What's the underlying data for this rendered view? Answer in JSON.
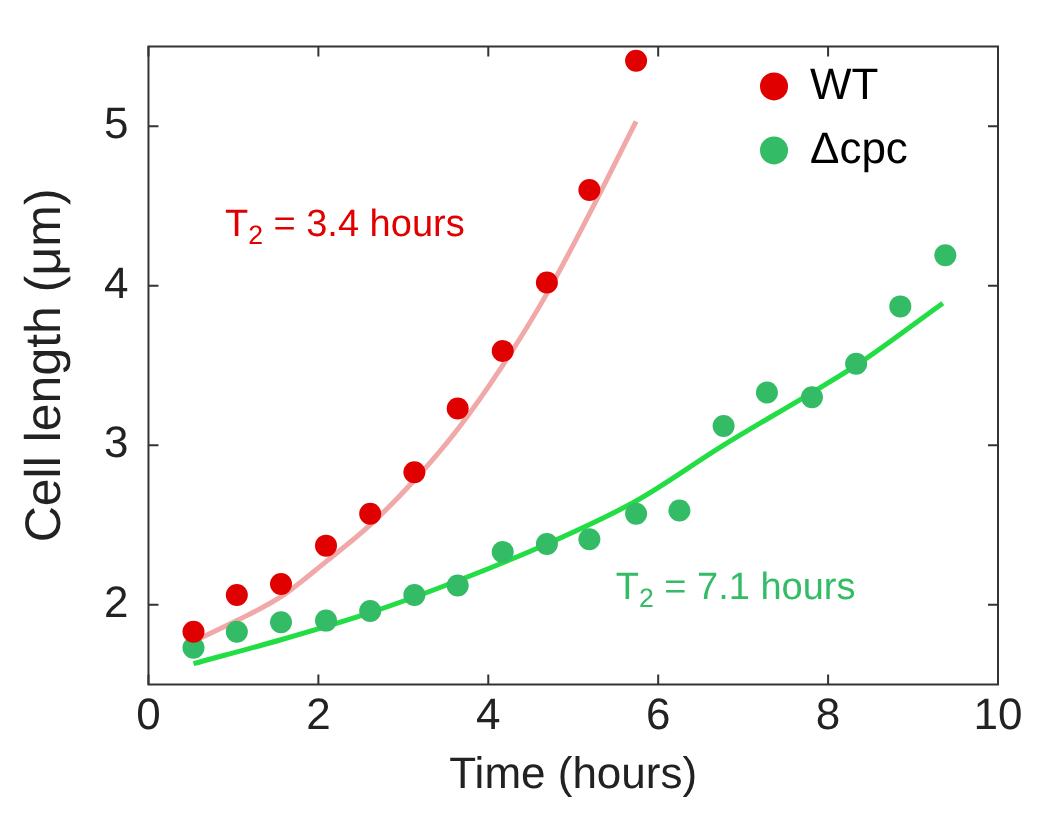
{
  "chart_data": {
    "type": "scatter",
    "xlabel": "Time (hours)",
    "ylabel": "Cell length (μm)",
    "xlim": [
      0,
      10
    ],
    "xticks": [
      0,
      2,
      4,
      6,
      8,
      10
    ],
    "ylim": [
      1.5,
      5.5
    ],
    "yticks": [
      2,
      3,
      4,
      5
    ],
    "grid": false,
    "legend": "top right",
    "series": [
      {
        "name": "WT",
        "color": "#e00000",
        "marker": "circle",
        "x": [
          0.53,
          1.04,
          1.56,
          2.09,
          2.61,
          3.13,
          3.64,
          4.17,
          4.69,
          5.19,
          5.74
        ],
        "values": [
          1.83,
          2.06,
          2.13,
          2.37,
          2.57,
          2.83,
          3.23,
          3.59,
          4.02,
          4.6,
          5.41
        ]
      },
      {
        "name": "Δcpc",
        "color": "#33bb66",
        "marker": "circle",
        "x": [
          0.53,
          1.04,
          1.56,
          2.09,
          2.61,
          3.13,
          3.64,
          4.17,
          4.69,
          5.19,
          5.74,
          6.25,
          6.77,
          7.28,
          7.81,
          8.33,
          8.85,
          9.38
        ],
        "values": [
          1.73,
          1.83,
          1.89,
          1.9,
          1.96,
          2.06,
          2.12,
          2.33,
          2.38,
          2.41,
          2.57,
          2.59,
          3.12,
          3.33,
          3.3,
          3.51,
          3.87,
          4.19
        ]
      },
      {
        "type": "line",
        "color": "#f0a8a8",
        "marker": "none",
        "x": [
          0.53,
          1.04,
          1.56,
          2.09,
          2.61,
          3.13,
          3.64,
          4.17,
          4.69,
          5.19,
          5.74
        ],
        "values": [
          1.77,
          1.9,
          2.05,
          2.27,
          2.5,
          2.78,
          3.1,
          3.5,
          3.95,
          4.45,
          5.03
        ]
      },
      {
        "type": "line",
        "color": "#22dd44",
        "marker": "none",
        "x": [
          0.53,
          1.56,
          2.61,
          3.64,
          4.69,
          5.74,
          6.77,
          7.81,
          8.33,
          9.35
        ],
        "values": [
          1.63,
          1.78,
          1.95,
          2.15,
          2.38,
          2.65,
          3.0,
          3.33,
          3.5,
          3.89
        ]
      }
    ],
    "annotations": [
      "T$_{2}$ = 3.4 hours",
      "T$_{2}$ = 7.1 hours"
    ]
  }
}
